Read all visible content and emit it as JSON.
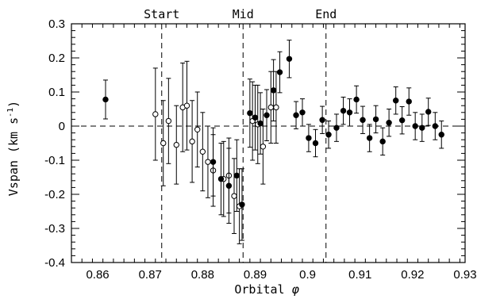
{
  "chart_data": {
    "type": "scatter",
    "xlabel_text": "Orbital",
    "xlabel_symbol": "φ",
    "ylabel_text": "Vspan (km s",
    "ylabel_sup": "-1",
    "ylabel_close": ")",
    "xlim": [
      0.855,
      0.93
    ],
    "ylim": [
      -0.4,
      0.3
    ],
    "xticks": [
      {
        "value": 0.86,
        "label": "0.86"
      },
      {
        "value": 0.87,
        "label": "0.87"
      },
      {
        "value": 0.88,
        "label": "0.88"
      },
      {
        "value": 0.89,
        "label": "0.89"
      },
      {
        "value": 0.9,
        "label": "0.9"
      },
      {
        "value": 0.91,
        "label": "0.91"
      },
      {
        "value": 0.92,
        "label": "0.92"
      },
      {
        "value": 0.93,
        "label": "0.93"
      }
    ],
    "yticks": [
      {
        "value": -0.4,
        "label": "-0.4"
      },
      {
        "value": -0.3,
        "label": "-0.3"
      },
      {
        "value": -0.2,
        "label": "-0.2"
      },
      {
        "value": -0.1,
        "label": "-0.1"
      },
      {
        "value": 0.0,
        "label": "0"
      },
      {
        "value": 0.1,
        "label": "0.1"
      },
      {
        "value": 0.2,
        "label": "0.2"
      },
      {
        "value": 0.3,
        "label": "0.3"
      }
    ],
    "reference_line_y": 0,
    "markers": [
      {
        "label": "Start",
        "x": 0.8722
      },
      {
        "label": "Mid",
        "x": 0.8877
      },
      {
        "label": "End",
        "x": 0.9035
      }
    ],
    "series": [
      {
        "marker": "open-circle",
        "points": [
          {
            "x": 0.871,
            "y": 0.035,
            "err": 0.135
          },
          {
            "x": 0.8725,
            "y": -0.05,
            "err": 0.125
          },
          {
            "x": 0.8735,
            "y": 0.015,
            "err": 0.125
          },
          {
            "x": 0.875,
            "y": -0.055,
            "err": 0.115
          },
          {
            "x": 0.8762,
            "y": 0.055,
            "err": 0.13
          },
          {
            "x": 0.877,
            "y": 0.06,
            "err": 0.13
          },
          {
            "x": 0.878,
            "y": -0.045,
            "err": 0.12
          },
          {
            "x": 0.879,
            "y": -0.01,
            "err": 0.11
          },
          {
            "x": 0.88,
            "y": -0.075,
            "err": 0.115
          },
          {
            "x": 0.881,
            "y": -0.105,
            "err": 0.105
          },
          {
            "x": 0.882,
            "y": -0.13,
            "err": 0.105
          },
          {
            "x": 0.884,
            "y": -0.155,
            "err": 0.11
          },
          {
            "x": 0.885,
            "y": -0.145,
            "err": 0.11
          },
          {
            "x": 0.886,
            "y": -0.205,
            "err": 0.11
          },
          {
            "x": 0.887,
            "y": -0.235,
            "err": 0.11
          },
          {
            "x": 0.8895,
            "y": 0.015,
            "err": 0.115
          },
          {
            "x": 0.8905,
            "y": 0.005,
            "err": 0.115
          },
          {
            "x": 0.8915,
            "y": -0.06,
            "err": 0.11
          },
          {
            "x": 0.893,
            "y": 0.055,
            "err": 0.105
          },
          {
            "x": 0.894,
            "y": 0.055,
            "err": 0.105
          }
        ]
      },
      {
        "marker": "filled-circle",
        "points": [
          {
            "x": 0.8615,
            "y": 0.078,
            "err": 0.057
          },
          {
            "x": 0.882,
            "y": -0.105,
            "err": 0.1
          },
          {
            "x": 0.8835,
            "y": -0.155,
            "err": 0.105
          },
          {
            "x": 0.885,
            "y": -0.175,
            "err": 0.11
          },
          {
            "x": 0.8865,
            "y": -0.145,
            "err": 0.105
          },
          {
            "x": 0.8875,
            "y": -0.23,
            "err": 0.105
          },
          {
            "x": 0.889,
            "y": 0.038,
            "err": 0.1
          },
          {
            "x": 0.89,
            "y": 0.025,
            "err": 0.095
          },
          {
            "x": 0.891,
            "y": 0.008,
            "err": 0.09
          },
          {
            "x": 0.8922,
            "y": 0.032,
            "err": 0.075
          },
          {
            "x": 0.8935,
            "y": 0.105,
            "err": 0.09
          },
          {
            "x": 0.8947,
            "y": 0.158,
            "err": 0.06
          },
          {
            "x": 0.8965,
            "y": 0.197,
            "err": 0.055
          },
          {
            "x": 0.8978,
            "y": 0.032,
            "err": 0.04
          },
          {
            "x": 0.899,
            "y": 0.04,
            "err": 0.04
          },
          {
            "x": 0.9002,
            "y": -0.035,
            "err": 0.04
          },
          {
            "x": 0.9015,
            "y": -0.05,
            "err": 0.04
          },
          {
            "x": 0.9028,
            "y": 0.018,
            "err": 0.04
          },
          {
            "x": 0.904,
            "y": -0.025,
            "err": 0.04
          },
          {
            "x": 0.9055,
            "y": -0.005,
            "err": 0.04
          },
          {
            "x": 0.9068,
            "y": 0.045,
            "err": 0.04
          },
          {
            "x": 0.908,
            "y": 0.04,
            "err": 0.04
          },
          {
            "x": 0.9093,
            "y": 0.078,
            "err": 0.04
          },
          {
            "x": 0.9105,
            "y": 0.018,
            "err": 0.04
          },
          {
            "x": 0.9118,
            "y": -0.035,
            "err": 0.04
          },
          {
            "x": 0.913,
            "y": 0.02,
            "err": 0.04
          },
          {
            "x": 0.9143,
            "y": -0.045,
            "err": 0.04
          },
          {
            "x": 0.9155,
            "y": 0.01,
            "err": 0.04
          },
          {
            "x": 0.9168,
            "y": 0.075,
            "err": 0.04
          },
          {
            "x": 0.918,
            "y": 0.017,
            "err": 0.04
          },
          {
            "x": 0.9193,
            "y": 0.072,
            "err": 0.04
          },
          {
            "x": 0.9205,
            "y": 0.0,
            "err": 0.04
          },
          {
            "x": 0.9218,
            "y": -0.005,
            "err": 0.04
          },
          {
            "x": 0.923,
            "y": 0.042,
            "err": 0.04
          },
          {
            "x": 0.9243,
            "y": 0.0,
            "err": 0.04
          },
          {
            "x": 0.9255,
            "y": -0.025,
            "err": 0.04
          }
        ]
      }
    ]
  }
}
